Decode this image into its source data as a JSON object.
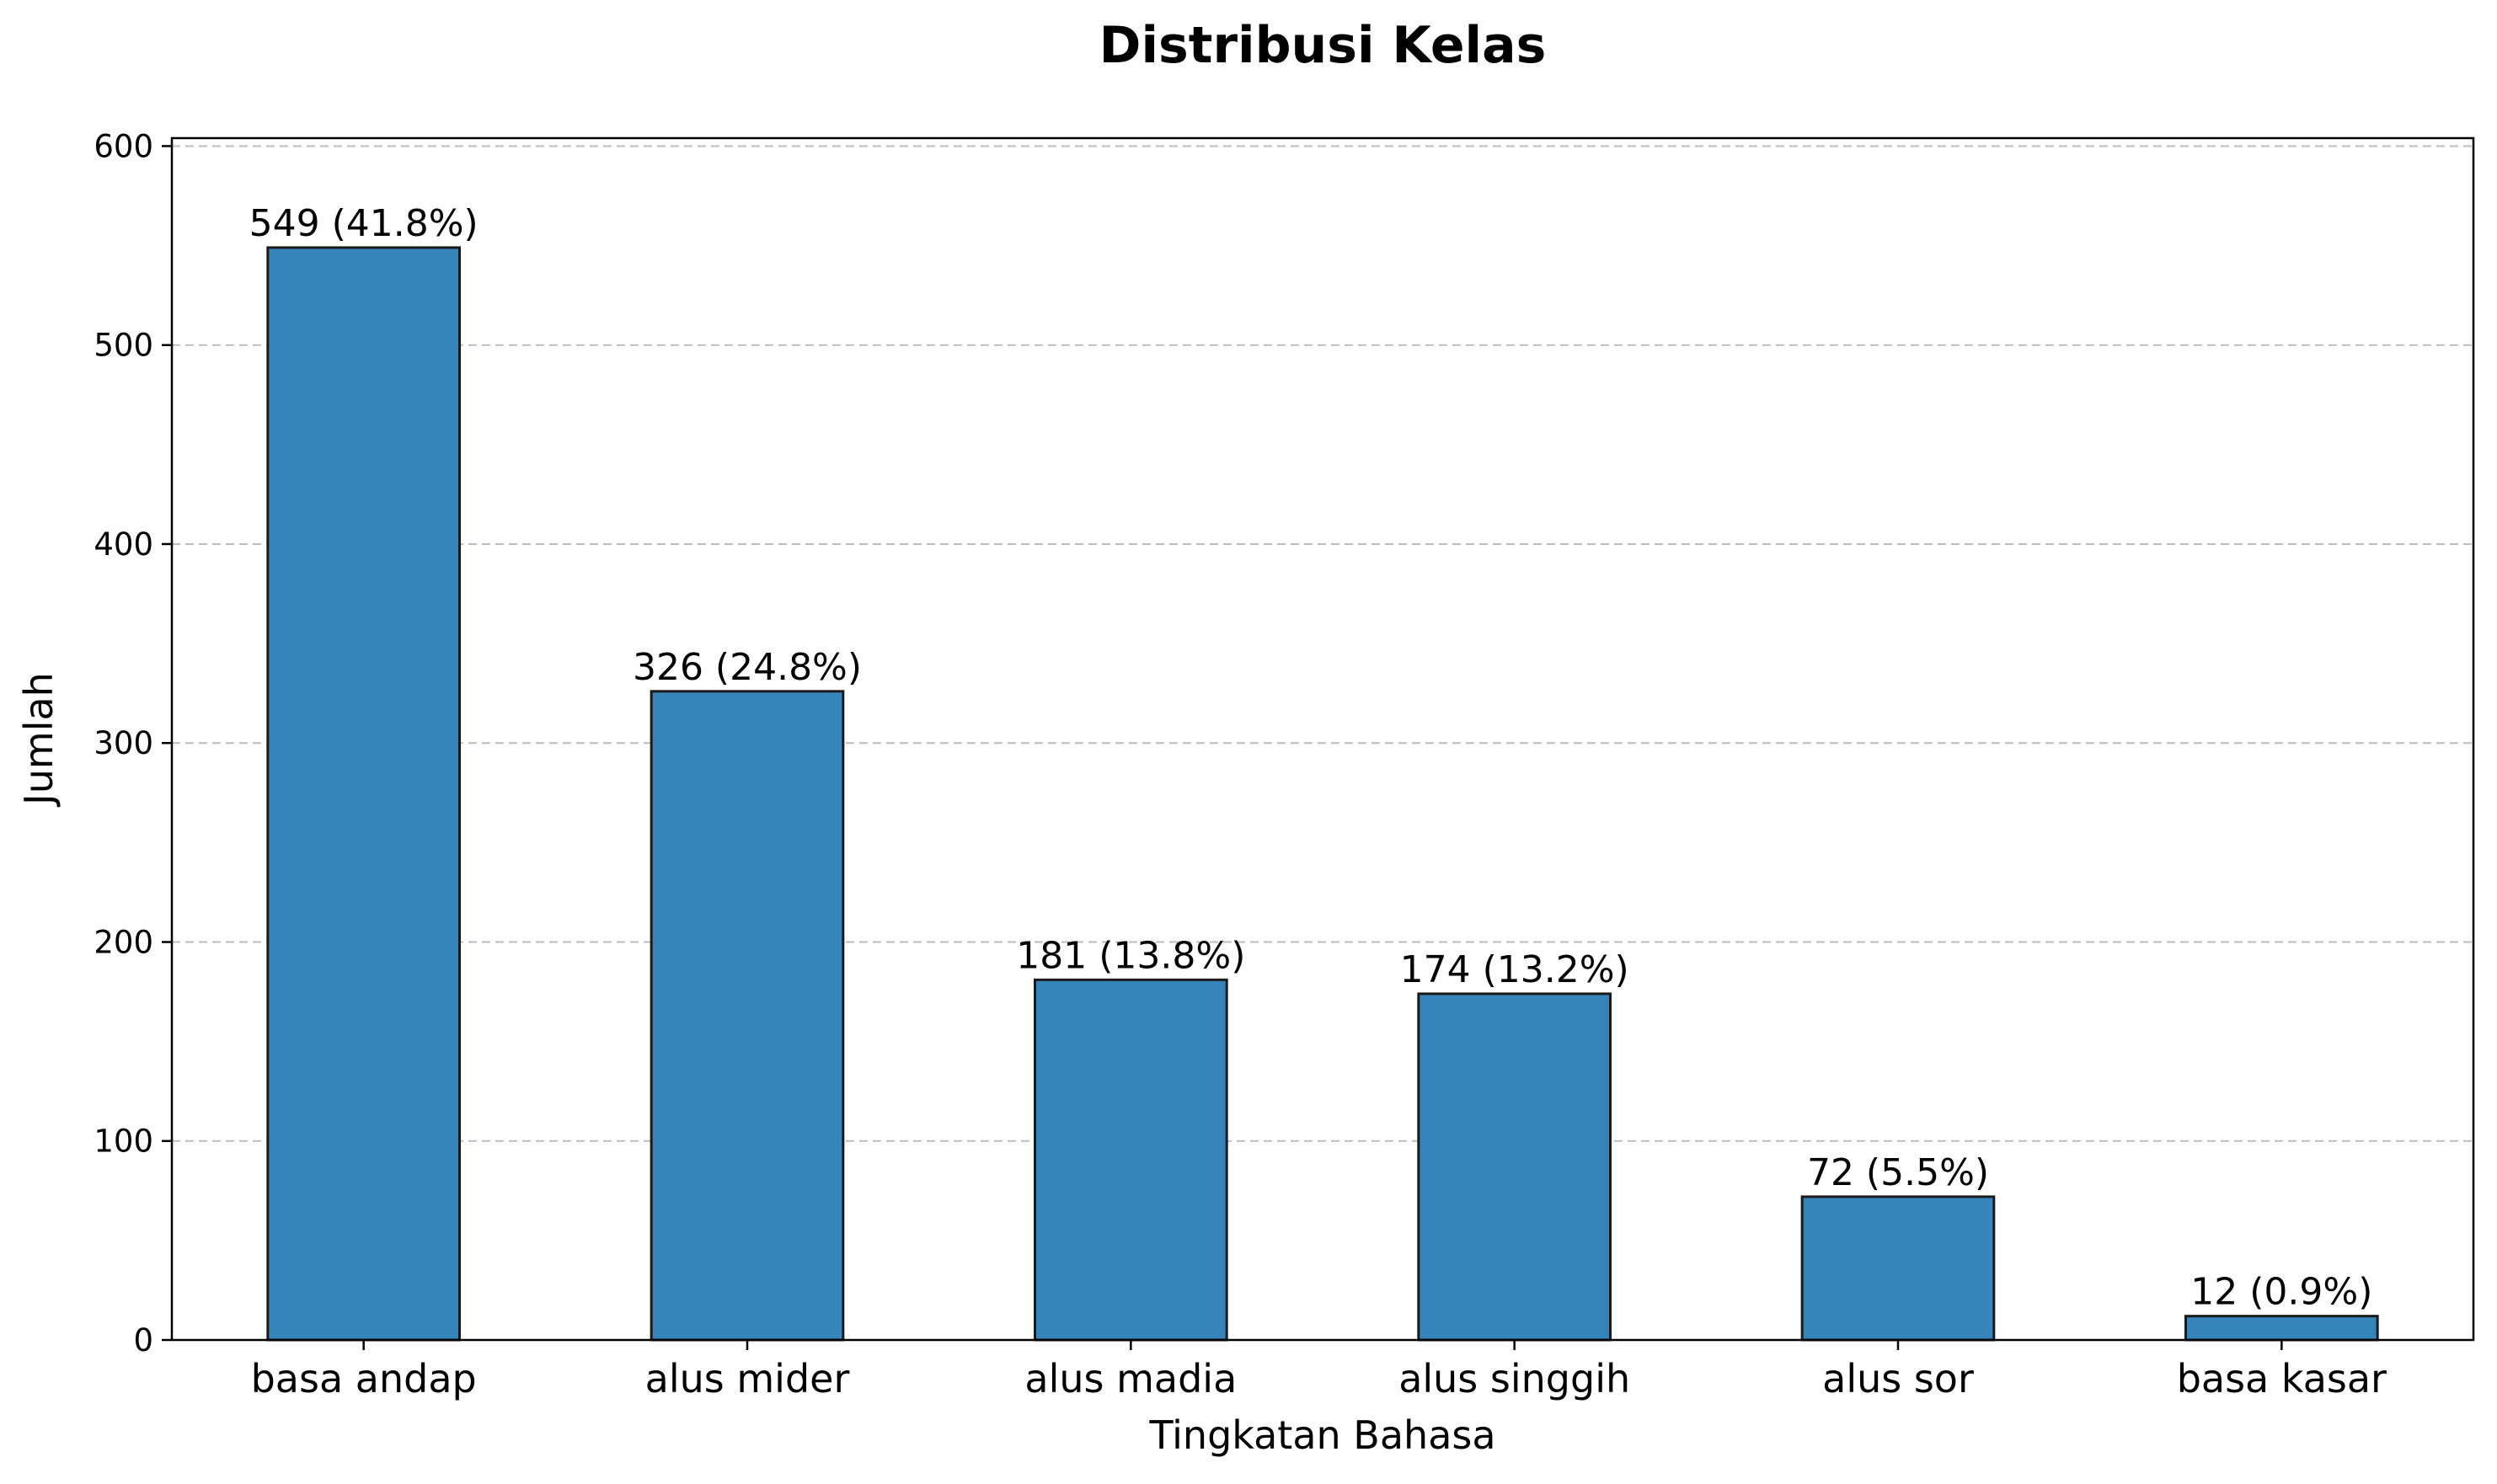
{
  "chart_data": {
    "type": "bar",
    "title": "Distribusi Kelas",
    "xlabel": "Tingkatan Bahasa",
    "ylabel": "Jumlah",
    "categories": [
      "basa andap",
      "alus mider",
      "alus madia",
      "alus singgih",
      "alus sor",
      "basa kasar"
    ],
    "values": [
      549,
      326,
      181,
      174,
      72,
      12
    ],
    "data_labels": [
      "549 (41.8%)",
      "326 (24.8%)",
      "181 (13.8%)",
      "174 (13.2%)",
      "72 (5.5%)",
      "12 (0.9%)"
    ],
    "ylim": [
      0,
      604
    ],
    "yticks": [
      0,
      100,
      200,
      300,
      400,
      500,
      600
    ],
    "grid": "y-dashed",
    "legend": "none",
    "bar_color": "#3784bb",
    "bar_edge_color": "#1a1a1a"
  }
}
